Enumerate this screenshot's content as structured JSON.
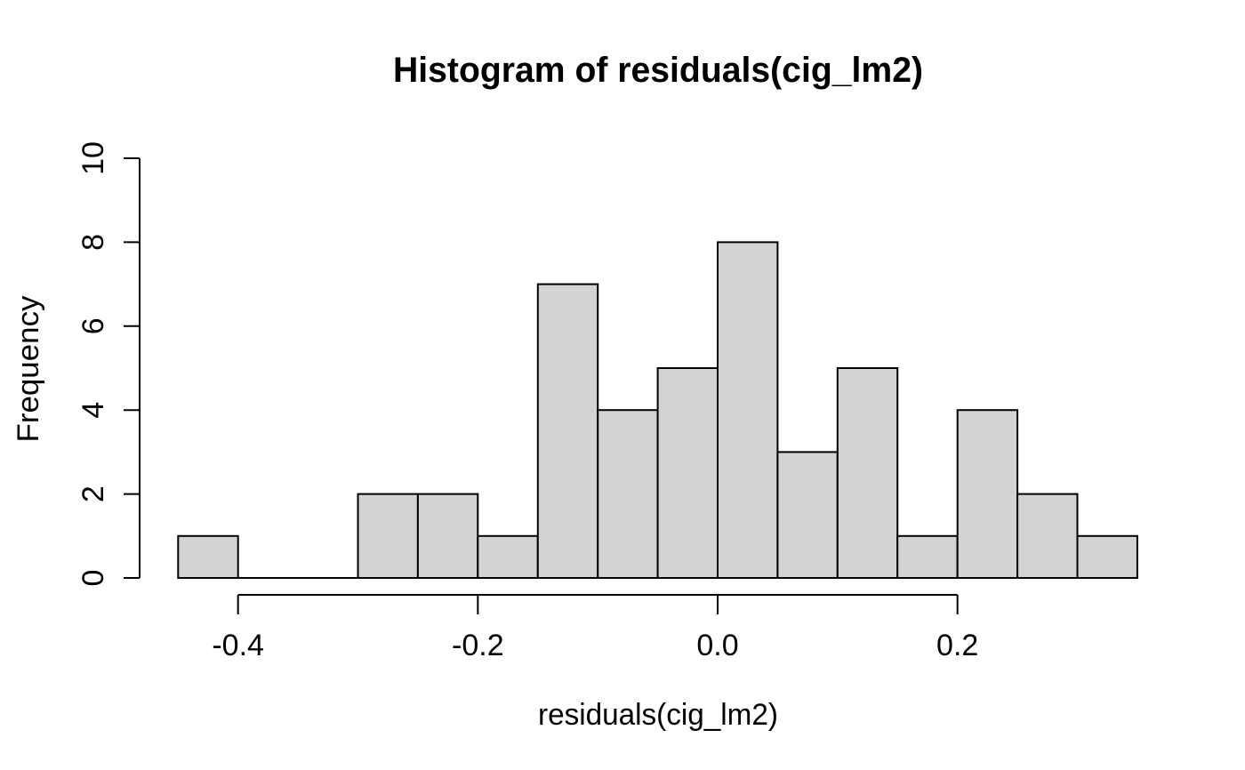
{
  "figure": {
    "title": "Histogram of residuals(cig_lm2)",
    "xlabel": "residuals(cig_lm2)",
    "ylabel": "Frequency"
  },
  "chart_data": {
    "type": "bar",
    "subtype": "histogram",
    "title": "Histogram of residuals(cig_lm2)",
    "xlabel": "residuals(cig_lm2)",
    "ylabel": "Frequency",
    "bin_start": -0.45,
    "bin_width": 0.05,
    "counts": [
      1,
      0,
      0,
      2,
      2,
      1,
      7,
      4,
      5,
      8,
      3,
      5,
      1,
      4,
      2,
      1
    ],
    "total_observations": 46,
    "x_tick_values": [
      -0.4,
      -0.2,
      0.0,
      0.2
    ],
    "x_tick_labels": [
      "-0.4",
      "-0.2",
      "0.0",
      "0.2"
    ],
    "y_tick_values": [
      0,
      2,
      4,
      6,
      8,
      10
    ],
    "y_tick_labels": [
      "0",
      "2",
      "4",
      "6",
      "8",
      "10"
    ],
    "xlim": [
      -0.45,
      0.35
    ],
    "ylim": [
      0,
      10
    ],
    "grid": false,
    "legend_position": "none",
    "bar_fill": "#d3d3d3",
    "bar_stroke": "#000000",
    "background": "#ffffff",
    "text_color": "#000000"
  }
}
